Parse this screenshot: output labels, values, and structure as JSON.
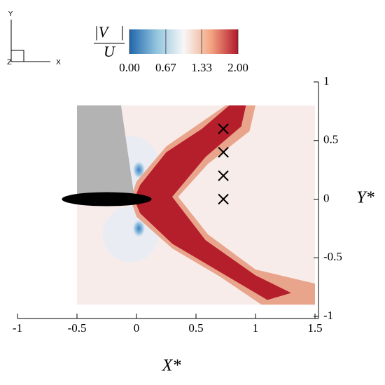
{
  "chart_data": {
    "type": "contour",
    "triad_labels": {
      "y": "Y",
      "x": "X",
      "z": "Z"
    },
    "colorbar_label": {
      "numerator": "|V⃗|",
      "denominator": "U"
    },
    "clim": [
      0,
      2
    ],
    "cticks": [
      {
        "value": 0,
        "label": "0.00"
      },
      {
        "value": 0.67,
        "label": "0.67"
      },
      {
        "value": 1.33,
        "label": "1.33"
      },
      {
        "value": 2,
        "label": "2.00"
      }
    ],
    "xlabel": "X*",
    "ylabel": "Y*",
    "xlim": [
      -1,
      1.5
    ],
    "xticks": [
      -1,
      -0.5,
      0,
      0.5,
      1,
      1.5
    ],
    "ylim": [
      -1,
      1
    ],
    "yticks": [
      -1,
      -0.5,
      0,
      0.5,
      1
    ],
    "markers": {
      "x": [
        0.73,
        0.73,
        0.73,
        0.73
      ],
      "y": [
        0,
        0.2,
        0.4,
        0.6
      ],
      "color": "#000000"
    }
  }
}
